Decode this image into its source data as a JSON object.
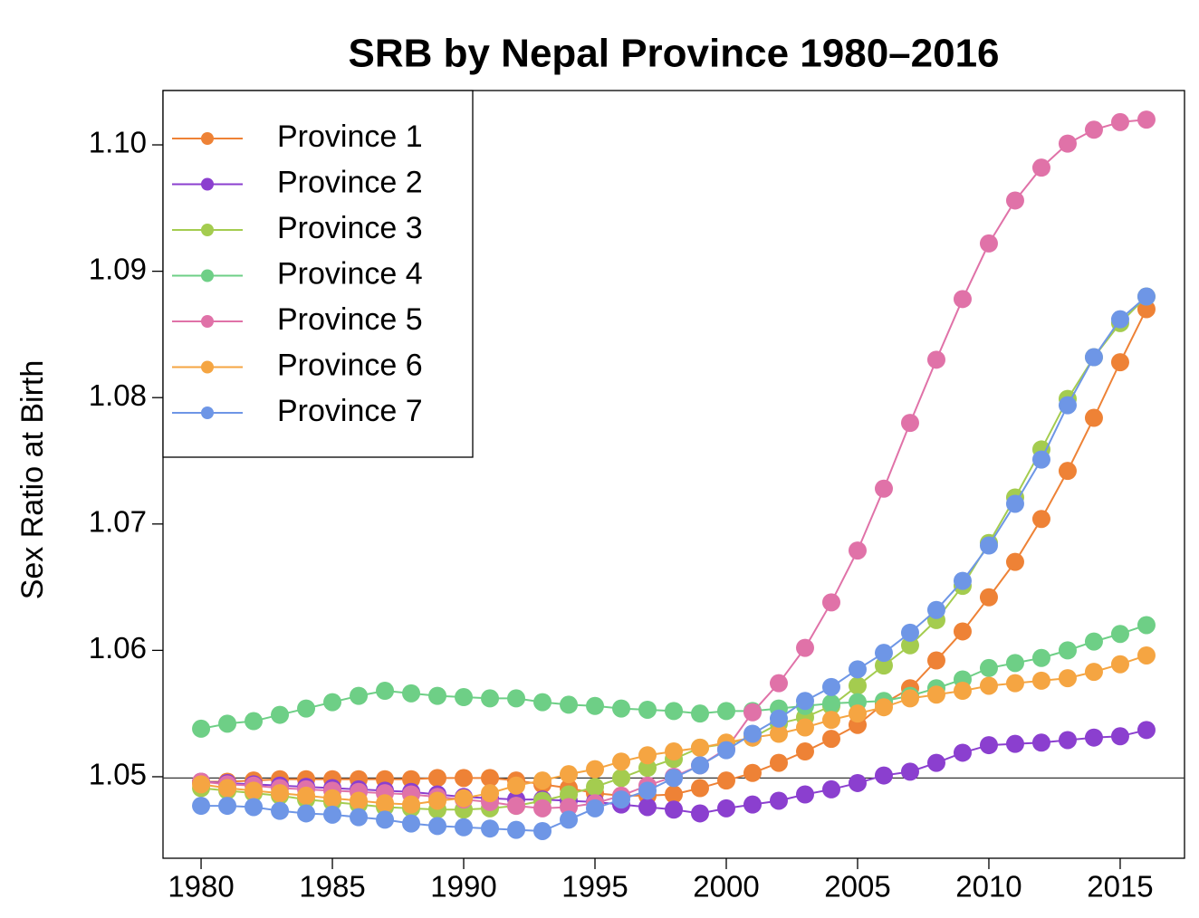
{
  "chart_data": {
    "type": "line",
    "title": "SRB by Nepal Province 1980–2016",
    "y_label": "Sex Ratio at Birth",
    "x": [
      1980,
      1981,
      1982,
      1983,
      1984,
      1985,
      1986,
      1987,
      1988,
      1989,
      1990,
      1991,
      1992,
      1993,
      1994,
      1995,
      1996,
      1997,
      1998,
      1999,
      2000,
      2001,
      2002,
      2003,
      2004,
      2005,
      2006,
      2007,
      2008,
      2009,
      2010,
      2011,
      2012,
      2013,
      2014,
      2015,
      2016
    ],
    "xlim": [
      1978.55,
      2017.45
    ],
    "xticks": [
      1980,
      1985,
      1990,
      1995,
      2000,
      2005,
      2010,
      2015
    ],
    "ylim": [
      1.04355,
      1.1043
    ],
    "yticks": [
      1.05,
      1.06,
      1.07,
      1.08,
      1.09,
      {
        "value": 1.1,
        "label": "1.10"
      }
    ],
    "reference_line": 1.0499,
    "legend": "top-left",
    "series": [
      {
        "name": "Province 1",
        "color": "#ee8236",
        "values": [
          1.0496,
          1.0496,
          1.0497,
          1.0498,
          1.0498,
          1.0498,
          1.0498,
          1.0498,
          1.0498,
          1.0499,
          1.0499,
          1.0499,
          1.0497,
          1.0494,
          1.0491,
          1.0487,
          1.0485,
          1.0485,
          1.0486,
          1.0491,
          1.0497,
          1.0503,
          1.0511,
          1.052,
          1.053,
          1.0541,
          1.0558,
          1.057,
          1.0592,
          1.0615,
          1.0642,
          1.067,
          1.0704,
          1.0742,
          1.0784,
          1.0828,
          1.087
        ]
      },
      {
        "name": "Province 2",
        "color": "#8b3fcf",
        "values": [
          1.0496,
          1.0495,
          1.0494,
          1.0493,
          1.0492,
          1.0491,
          1.049,
          1.0489,
          1.0488,
          1.0486,
          1.0484,
          1.0483,
          1.0482,
          1.0482,
          1.0481,
          1.048,
          1.0478,
          1.0476,
          1.0474,
          1.0471,
          1.0475,
          1.0478,
          1.0481,
          1.0486,
          1.049,
          1.0495,
          1.0501,
          1.0504,
          1.0511,
          1.0519,
          1.0525,
          1.0526,
          1.0527,
          1.0529,
          1.0531,
          1.0532,
          1.0537
        ]
      },
      {
        "name": "Province 3",
        "color": "#a4cc4f",
        "values": [
          1.0491,
          1.0489,
          1.0487,
          1.0485,
          1.0482,
          1.048,
          1.0478,
          1.0476,
          1.0475,
          1.0474,
          1.0474,
          1.0475,
          1.0477,
          1.0481,
          1.0486,
          1.0492,
          1.0499,
          1.0507,
          1.0514,
          1.0523,
          1.0526,
          1.0531,
          1.0542,
          1.0547,
          1.0556,
          1.0572,
          1.0588,
          1.0604,
          1.0624,
          1.0651,
          1.0685,
          1.0721,
          1.0759,
          1.0799,
          1.0832,
          1.0859,
          1.088
        ]
      },
      {
        "name": "Province 4",
        "color": "#6ecf86",
        "values": [
          1.0538,
          1.0542,
          1.0544,
          1.0549,
          1.0554,
          1.0559,
          1.0564,
          1.0568,
          1.0566,
          1.0564,
          1.0563,
          1.0562,
          1.0562,
          1.0559,
          1.0557,
          1.0556,
          1.0554,
          1.0553,
          1.0552,
          1.055,
          1.0552,
          1.0552,
          1.0554,
          1.0556,
          1.0558,
          1.0559,
          1.056,
          1.0564,
          1.057,
          1.0577,
          1.0586,
          1.059,
          1.0594,
          1.06,
          1.0607,
          1.0613,
          1.062
        ]
      },
      {
        "name": "Province 5",
        "color": "#e072a8",
        "values": [
          1.0496,
          1.0494,
          1.0493,
          1.0491,
          1.049,
          1.0489,
          1.0488,
          1.0487,
          1.0486,
          1.0484,
          1.0482,
          1.048,
          1.0477,
          1.0475,
          1.0476,
          1.0479,
          1.0485,
          1.0493,
          1.05,
          1.0509,
          1.0522,
          1.0551,
          1.0574,
          1.0602,
          1.0638,
          1.0679,
          1.0728,
          1.078,
          1.083,
          1.0878,
          1.0922,
          1.0956,
          1.0982,
          1.1001,
          1.1012,
          1.1018,
          1.102
        ]
      },
      {
        "name": "Province 6",
        "color": "#f5a542",
        "values": [
          1.0494,
          1.0491,
          1.0489,
          1.0487,
          1.0485,
          1.0483,
          1.0481,
          1.0479,
          1.0478,
          1.0481,
          1.0483,
          1.0487,
          1.0493,
          1.0497,
          1.0502,
          1.0506,
          1.0512,
          1.0517,
          1.052,
          1.0523,
          1.0527,
          1.0531,
          1.0534,
          1.0539,
          1.0545,
          1.055,
          1.0555,
          1.0562,
          1.0565,
          1.0568,
          1.0572,
          1.0574,
          1.0576,
          1.0578,
          1.0583,
          1.0589,
          1.0596
        ]
      },
      {
        "name": "Province 7",
        "color": "#6e96e6",
        "values": [
          1.0477,
          1.0477,
          1.0476,
          1.0473,
          1.0471,
          1.047,
          1.0468,
          1.0466,
          1.0463,
          1.0461,
          1.046,
          1.0459,
          1.0458,
          1.0457,
          1.0466,
          1.0475,
          1.0482,
          1.0489,
          1.0499,
          1.0509,
          1.0521,
          1.0534,
          1.0546,
          1.056,
          1.0571,
          1.0585,
          1.0598,
          1.0614,
          1.0632,
          1.0655,
          1.0683,
          1.0716,
          1.0751,
          1.0794,
          1.0832,
          1.0862,
          1.088
        ]
      }
    ]
  }
}
